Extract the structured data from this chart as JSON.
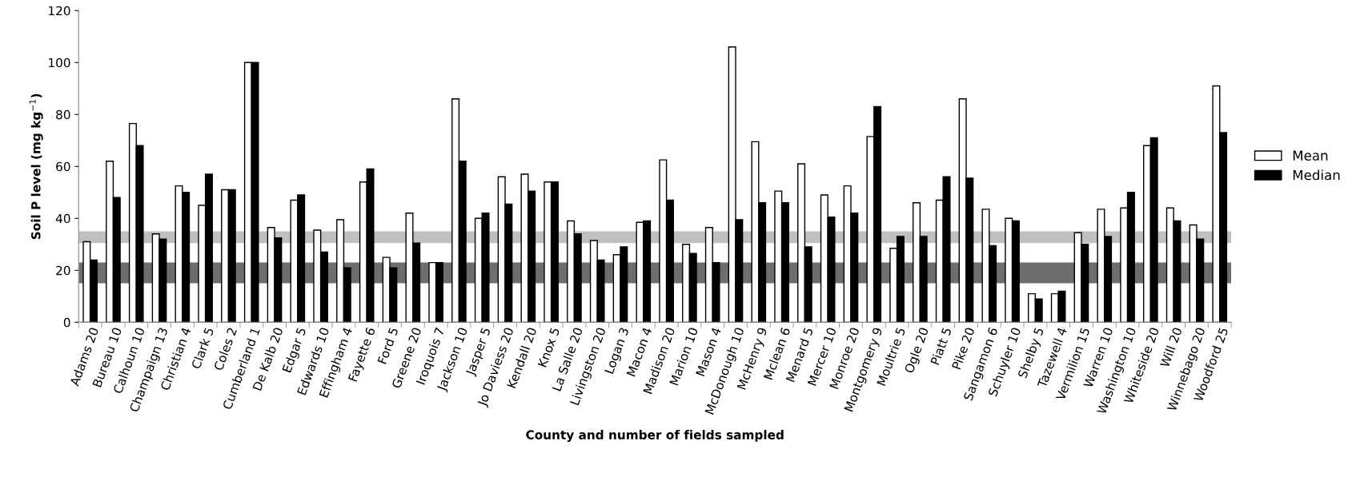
{
  "chart_data": {
    "type": "bar",
    "xlabel": "County and number of fields sampled",
    "ylabel": "Soil P level (mg kg$^{−1}$)",
    "categories": [
      "Adams 20",
      "Bureau 10",
      "Calhoun 10",
      "Champaign 13",
      "Christian 4",
      "Clark 5",
      "Coles 2",
      "Cumberland 1",
      "De Kalb 20",
      "Edgar 5",
      "Edwards 10",
      "Effingham 4",
      "Fayette 6",
      "Ford 5",
      "Greene 20",
      "Iroquois 7",
      "Jackson 10",
      "Jasper 5",
      "Jo Daviess 20",
      "Kendall 20",
      "Knox 5",
      "La Salle 20",
      "Livingston 20",
      "Logan 3",
      "Macon 4",
      "Madison 20",
      "Marion 10",
      "Mason 4",
      "McDonough 10",
      "McHenry 9",
      "Mclean 6",
      "Menard 5",
      "Mercer 10",
      "Monroe 20",
      "Montgomery 9",
      "Moultrie 5",
      "Ogle 20",
      "Piatt 5",
      "Pike 20",
      "Sangamon 6",
      "Schuyler 10",
      "Shelby 5",
      "Tazewell 4",
      "Vermilion 15",
      "Warren 10",
      "Washington 10",
      "Whiteside 20",
      "Will 20",
      "Winnebago 20",
      "Woodford 25"
    ],
    "series": [
      {
        "name": "Mean",
        "color": "#ffffff",
        "values": [
          31,
          62,
          76.5,
          34,
          52.5,
          45,
          51,
          100,
          36.5,
          47,
          35.5,
          39.5,
          54,
          25,
          42,
          23,
          86,
          40,
          56,
          57,
          54,
          39,
          31.5,
          26,
          38.5,
          62.5,
          30,
          36.5,
          106,
          69.5,
          50.5,
          61,
          49,
          52.5,
          71.5,
          28.5,
          46,
          47,
          86,
          43.5,
          40,
          11,
          11,
          34.5,
          43.5,
          44,
          68,
          44,
          37.5,
          91
        ]
      },
      {
        "name": "Median",
        "color": "#000000",
        "values": [
          24,
          48,
          68,
          32,
          50,
          57,
          51,
          100,
          32.5,
          49,
          27,
          21,
          59,
          21,
          30.5,
          23,
          62,
          42,
          45.5,
          50.5,
          54,
          34,
          24,
          29,
          39,
          47,
          26.5,
          23,
          39.5,
          46,
          46,
          29,
          40.5,
          42,
          83,
          33,
          33,
          56,
          55.5,
          29.5,
          39,
          9,
          12,
          30,
          33,
          50,
          71,
          39,
          32,
          73
        ]
      }
    ],
    "ylim": [
      0,
      120
    ],
    "yticks": [
      0,
      20,
      40,
      60,
      80,
      100,
      120
    ],
    "bands": [
      {
        "axis": "y",
        "from": 30.5,
        "to": 35,
        "color": "#b8b8b8"
      },
      {
        "axis": "y",
        "from": 15,
        "to": 23,
        "color": "#5e5e5e"
      }
    ],
    "legend": "right",
    "grid": false
  }
}
